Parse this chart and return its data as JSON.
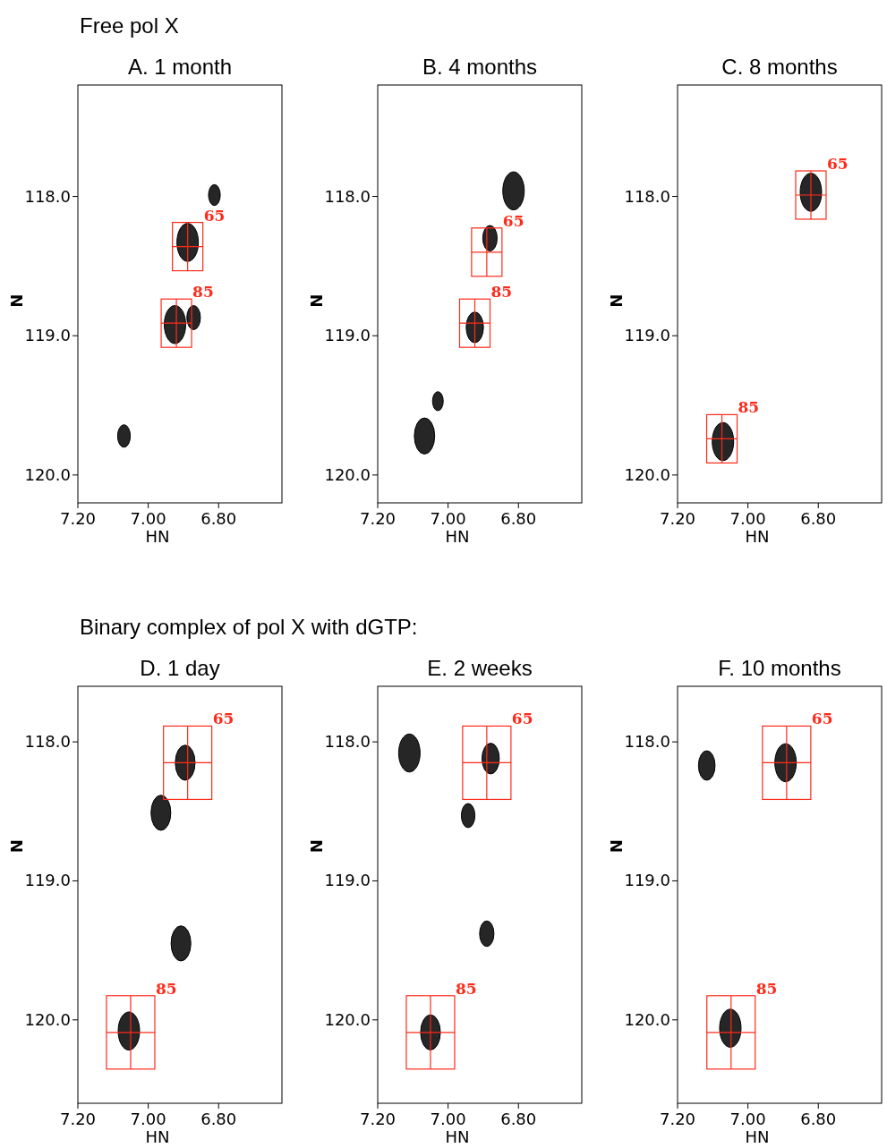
{
  "chart_data": [
    {
      "type": "bubble",
      "title": "A. 1 month",
      "annotations": [
        "Free pol X",
        {
          "text": "65",
          "x": 6.888,
          "y": 118.36
        },
        {
          "text": "85",
          "x": 6.92,
          "y": 118.91
        }
      ],
      "xlabel": "HN",
      "ylabel": "N",
      "xlim": [
        7.2,
        6.62
      ],
      "xticks": [
        {
          "value": 7.2,
          "label": "7.20"
        },
        {
          "value": 7.0,
          "label": "7.00"
        },
        {
          "value": 6.8,
          "label": "6.80"
        }
      ],
      "ylim": [
        120.2,
        117.2
      ],
      "yticks": [
        {
          "value": 118,
          "label": "118.0"
        },
        {
          "value": 119,
          "label": "119.0"
        },
        {
          "value": 120,
          "label": "120.0"
        }
      ],
      "series": [
        {
          "color": "#000000",
          "x": [
            6.888,
            6.812,
            6.924,
            6.871,
            7.069
          ],
          "values": [
            118.33,
            117.99,
            118.92,
            118.87,
            119.72
          ],
          "sizes": [
            1,
            0.3,
            1,
            0.4,
            0.35
          ]
        }
      ]
    },
    {
      "type": "bubble",
      "title": "B. 4 months",
      "annotations": [
        {
          "text": "65",
          "x": 6.89,
          "y": 118.4
        },
        {
          "text": "85",
          "x": 6.924,
          "y": 118.91
        }
      ],
      "xlabel": "HN",
      "ylabel": "N",
      "xlim": [
        7.2,
        6.62
      ],
      "xticks": [
        {
          "value": 7.2,
          "label": "7.20"
        },
        {
          "value": 7.0,
          "label": "7.00"
        },
        {
          "value": 6.8,
          "label": "6.80"
        }
      ],
      "ylim": [
        120.2,
        117.2
      ],
      "yticks": [
        {
          "value": 118,
          "label": "118.0"
        },
        {
          "value": 119,
          "label": "119.0"
        },
        {
          "value": 120,
          "label": "120.0"
        }
      ],
      "series": [
        {
          "color": "#000000",
          "x": [
            6.814,
            6.881,
            6.924,
            7.029,
            7.067
          ],
          "values": [
            117.96,
            118.3,
            118.94,
            119.47,
            119.72
          ],
          "sizes": [
            1,
            0.45,
            0.65,
            0.25,
            0.9
          ]
        }
      ]
    },
    {
      "type": "bubble",
      "title": "C. 8 months",
      "annotations": [
        {
          "text": "65",
          "x": 6.821,
          "y": 117.99
        },
        {
          "text": "85",
          "x": 7.074,
          "y": 119.74
        }
      ],
      "xlabel": "HN",
      "ylabel": "N",
      "xlim": [
        7.2,
        6.62
      ],
      "xticks": [
        {
          "value": 7.2,
          "label": "7.20"
        },
        {
          "value": 7.0,
          "label": "7.00"
        },
        {
          "value": 6.8,
          "label": "6.80"
        }
      ],
      "ylim": [
        120.2,
        117.2
      ],
      "yticks": [
        {
          "value": 118,
          "label": "118.0"
        },
        {
          "value": 119,
          "label": "119.0"
        },
        {
          "value": 120,
          "label": "120.0"
        }
      ],
      "series": [
        {
          "color": "#000000",
          "x": [
            6.821,
            7.071
          ],
          "values": [
            117.97,
            119.76
          ],
          "sizes": [
            1,
            1
          ]
        }
      ]
    },
    {
      "type": "bubble",
      "title": "D. 1 day",
      "annotations": [
        "Binary complex of pol X with dGTP:",
        {
          "text": "65",
          "x": 6.888,
          "y": 118.15
        },
        {
          "text": "85",
          "x": 7.05,
          "y": 120.09
        }
      ],
      "xlabel": "HN",
      "ylabel": "N",
      "xlim": [
        7.2,
        6.62
      ],
      "xticks": [
        {
          "value": 7.2,
          "label": "7.20"
        },
        {
          "value": 7.0,
          "label": "7.00"
        },
        {
          "value": 6.8,
          "label": "6.80"
        }
      ],
      "ylim": [
        120.6,
        117.6
      ],
      "yticks": [
        {
          "value": 118,
          "label": "118.0"
        },
        {
          "value": 119,
          "label": "119.0"
        },
        {
          "value": 120,
          "label": "120.0"
        }
      ],
      "series": [
        {
          "color": "#000000",
          "x": [
            6.895,
            6.964,
            6.907,
            7.055
          ],
          "values": [
            118.15,
            118.51,
            119.45,
            120.08
          ],
          "sizes": [
            0.85,
            0.85,
            0.85,
            1
          ]
        }
      ]
    },
    {
      "type": "bubble",
      "title": "E. 2 weeks",
      "annotations": [
        {
          "text": "65",
          "x": 6.89,
          "y": 118.15
        },
        {
          "text": "85",
          "x": 7.05,
          "y": 120.09
        }
      ],
      "xlabel": "HN",
      "ylabel": "N",
      "xlim": [
        7.2,
        6.62
      ],
      "xticks": [
        {
          "value": 7.2,
          "label": "7.20"
        },
        {
          "value": 7.0,
          "label": "7.00"
        },
        {
          "value": 6.8,
          "label": "6.80"
        }
      ],
      "ylim": [
        120.6,
        117.6
      ],
      "yticks": [
        {
          "value": 118,
          "label": "118.0"
        },
        {
          "value": 119,
          "label": "119.0"
        },
        {
          "value": 120,
          "label": "120.0"
        }
      ],
      "series": [
        {
          "color": "#000000",
          "x": [
            7.11,
            6.879,
            6.943,
            6.89,
            7.05
          ],
          "values": [
            118.08,
            118.12,
            118.53,
            119.38,
            120.09
          ],
          "sizes": [
            1,
            0.65,
            0.4,
            0.45,
            0.85
          ]
        }
      ]
    },
    {
      "type": "bubble",
      "title": "F. 10 months",
      "annotations": [
        {
          "text": "65",
          "x": 6.89,
          "y": 118.15
        },
        {
          "text": "85",
          "x": 7.048,
          "y": 120.09
        }
      ],
      "xlabel": "HN",
      "ylabel": "N",
      "xlim": [
        7.2,
        6.62
      ],
      "xticks": [
        {
          "value": 7.2,
          "label": "7.20"
        },
        {
          "value": 7.0,
          "label": "7.00"
        },
        {
          "value": 6.8,
          "label": "6.80"
        }
      ],
      "ylim": [
        120.6,
        117.6
      ],
      "yticks": [
        {
          "value": 118,
          "label": "118.0"
        },
        {
          "value": 119,
          "label": "119.0"
        },
        {
          "value": 120,
          "label": "120.0"
        }
      ],
      "series": [
        {
          "color": "#000000",
          "x": [
            7.117,
            6.893,
            7.05
          ],
          "values": [
            118.17,
            118.15,
            120.06
          ],
          "sizes": [
            0.6,
            1,
            1
          ]
        }
      ]
    }
  ]
}
